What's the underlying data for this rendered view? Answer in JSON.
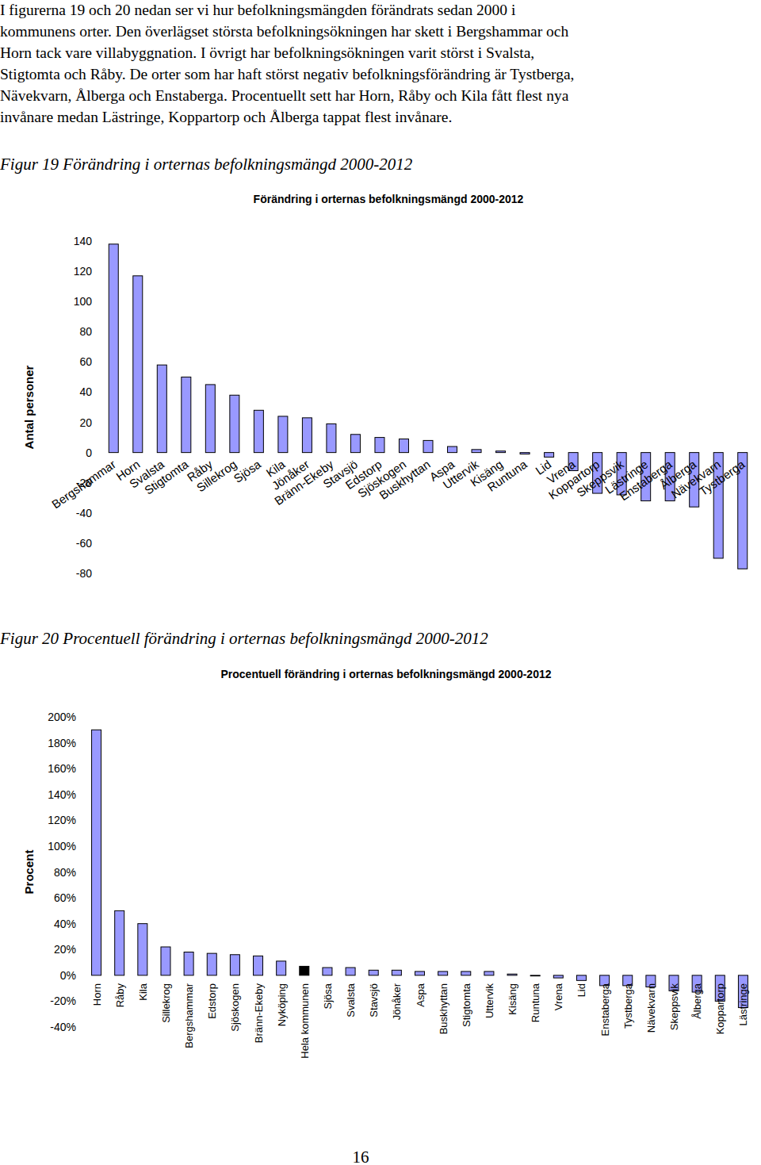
{
  "text": {
    "paragraph_lines": [
      "I figurerna 19 och 20 nedan ser vi hur befolkningsmängden förändrats sedan 2000 i",
      "kommunens orter. Den överlägset största befolkningsökningen har skett i Bergshammar och",
      "Horn tack vare villabyggnation. I övrigt har befolkningsökningen varit störst i Svalsta,",
      "Stigtomta och Råby. De orter som har haft störst negativ befolkningsförändring är Tystberga,",
      "Nävekvarn, Ålberga och Enstaberga. Procentuellt sett har Horn, Råby och Kila fått flest nya",
      "invånare medan Lästringe, Koppartorp och Ålberga tappat flest invånare."
    ],
    "captions": [
      "Figur 19 Förändring i orternas befolkningsmängd 2000-2012",
      "Figur 20 Procentuell förändring i orternas befolkningsmängd 2000-2012"
    ],
    "page_number": "16"
  },
  "chart_data": [
    {
      "type": "bar",
      "title": "Förändring i orternas befolkningsmängd 2000-2012",
      "y_label": "Antal personer",
      "categories": [
        "Bergshammar",
        "Horn",
        "Svalsta",
        "Stigtomta",
        "Råby",
        "Sillekrog",
        "Sjösa",
        "Kila",
        "Jönåker",
        "Bränn-Ekeby",
        "Stavsjö",
        "Edstorp",
        "Sjöskogen",
        "Buskhyttan",
        "Aspa",
        "Uttervik",
        "Kisäng",
        "Runtuna",
        "Lid",
        "Vrena",
        "Koppartorp",
        "Skeppsvik",
        "Lästringe",
        "Enstaberga",
        "Ålberga",
        "Nävekvarn",
        "Tystberga"
      ],
      "values": [
        138,
        117,
        58,
        50,
        45,
        38,
        28,
        24,
        23,
        19,
        12,
        10,
        9,
        8,
        4,
        2,
        1,
        -1,
        -3,
        -12,
        -27,
        -28,
        -32,
        -32,
        -36,
        -70,
        -77
      ],
      "color": "#9999ff",
      "ylim": [
        -80,
        140
      ],
      "yticks": [
        -80,
        -60,
        -40,
        -20,
        0,
        20,
        40,
        60,
        80,
        100,
        120,
        140
      ],
      "grid": false
    },
    {
      "type": "bar",
      "title": "Procentuell förändring i orternas befolkningsmängd 2000-2012",
      "y_label": "Procent",
      "categories": [
        "Horn",
        "Råby",
        "Kila",
        "Sillekrog",
        "Bergshammar",
        "Edstorp",
        "Sjöskogen",
        "Bränn-Ekeby",
        "Nyköping",
        "Hela kommunen",
        "Sjösa",
        "Svalsta",
        "Stavsjö",
        "Jönåker",
        "Aspa",
        "Buskhyttan",
        "Stigtomta",
        "Uttervik",
        "Kisäng",
        "Runtuna",
        "Vrena",
        "Lid",
        "Enstaberga",
        "Tystberga",
        "Nävekvarn",
        "Skeppsvik",
        "Ålberga",
        "Koppartorp",
        "Lästringe"
      ],
      "values": [
        190,
        50,
        40,
        22,
        18,
        17,
        16,
        15,
        11,
        7,
        6,
        6,
        4,
        4,
        3,
        3,
        3,
        3,
        1,
        -0.5,
        -2,
        -4,
        -8,
        -8,
        -9,
        -12,
        -13,
        -20,
        -25
      ],
      "colors": [
        "#9999ff",
        "#9999ff",
        "#9999ff",
        "#9999ff",
        "#9999ff",
        "#9999ff",
        "#9999ff",
        "#9999ff",
        "#9999ff",
        "#000000",
        "#9999ff",
        "#9999ff",
        "#9999ff",
        "#9999ff",
        "#9999ff",
        "#9999ff",
        "#9999ff",
        "#9999ff",
        "#9999ff",
        "#9999ff",
        "#9999ff",
        "#9999ff",
        "#9999ff",
        "#9999ff",
        "#9999ff",
        "#9999ff",
        "#9999ff",
        "#9999ff",
        "#9999ff"
      ],
      "ylim": [
        -40,
        200
      ],
      "yticks": [
        {
          "value": -40,
          "label": "-40%"
        },
        {
          "value": -20,
          "label": "-20%"
        },
        {
          "value": 0,
          "label": "0%"
        },
        {
          "value": 20,
          "label": "20%"
        },
        {
          "value": 40,
          "label": "40%"
        },
        {
          "value": 60,
          "label": "60%"
        },
        {
          "value": 80,
          "label": "80%"
        },
        {
          "value": 100,
          "label": "100%"
        },
        {
          "value": 120,
          "label": "120%"
        },
        {
          "value": 140,
          "label": "140%"
        },
        {
          "value": 160,
          "label": "160%"
        },
        {
          "value": 180,
          "label": "180%"
        },
        {
          "value": 200,
          "label": "200%"
        }
      ],
      "grid": false
    }
  ]
}
